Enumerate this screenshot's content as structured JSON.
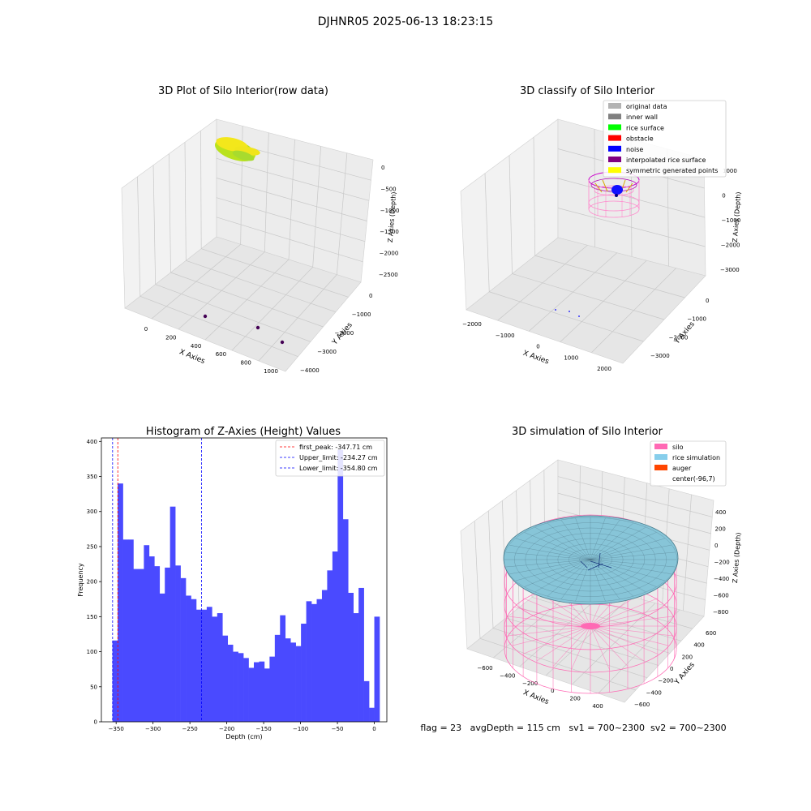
{
  "figure": {
    "suptitle": "DJHNR05 2025-06-13 18:23:15",
    "footer": "flag = 23   avgDepth = 115 cm   sv1 = 700~2300  sv2 = 700~2300"
  },
  "chart_data": [
    {
      "type": "scatter",
      "title": "3D Plot of Silo Interior(row data)",
      "xlabel": "X Axies",
      "ylabel": "Y Axies",
      "zlabel": "Z Axies (Depth)",
      "x_ticks": [
        "0",
        "200",
        "400",
        "600",
        "800",
        "1000"
      ],
      "y_ticks": [
        "0",
        "−1000",
        "−2000",
        "−3000",
        "−4000"
      ],
      "z_ticks": [
        "0",
        "−500",
        "−1000",
        "−1500",
        "−2000",
        "−2500"
      ],
      "colors": {
        "point_cloud": "#c8e61e",
        "point_cloud_yellow": "#f5e61e",
        "outliers": "#440154"
      }
    },
    {
      "type": "scatter",
      "title": "3D classify of Silo Interior",
      "xlabel": "X Axies",
      "ylabel": "Y Axies",
      "zlabel": "Z Axies (Depth)",
      "x_ticks": [
        "−2000",
        "−1000",
        "0",
        "1000",
        "2000"
      ],
      "y_ticks": [
        "0",
        "−1000",
        "−2000",
        "−3000"
      ],
      "z_ticks": [
        "1000",
        "0",
        "−1000",
        "−2000",
        "−3000"
      ],
      "legend_position": "top-right",
      "legend": [
        {
          "label": "original data",
          "color": "#b3b3b3"
        },
        {
          "label": "inner wall",
          "color": "#808080"
        },
        {
          "label": "rice surface",
          "color": "#00ff00"
        },
        {
          "label": "obstacle",
          "color": "#ff0000"
        },
        {
          "label": "noise",
          "color": "#0000ff"
        },
        {
          "label": "interpolated rice surface",
          "color": "#800080"
        },
        {
          "label": "symmetric generated points",
          "color": "#ffff00"
        }
      ]
    },
    {
      "type": "bar",
      "title": "Histogram of Z-Axies (Height) Values",
      "xlabel": "Depth (cm)",
      "ylabel": "Frequency",
      "xlim": [
        -370,
        17
      ],
      "ylim": [
        0,
        405
      ],
      "x_ticks": [
        -350,
        -300,
        -250,
        -200,
        -150,
        -100,
        -50,
        0
      ],
      "y_ticks": [
        0,
        50,
        100,
        150,
        200,
        250,
        300,
        350,
        400
      ],
      "bin_start": -355,
      "bin_width": 7.1,
      "values": [
        116,
        340,
        260,
        260,
        218,
        218,
        252,
        236,
        222,
        183,
        220,
        307,
        223,
        205,
        180,
        175,
        160,
        160,
        164,
        150,
        155,
        123,
        110,
        100,
        98,
        91,
        77,
        85,
        86,
        76,
        93,
        124,
        152,
        119,
        113,
        108,
        140,
        172,
        168,
        175,
        188,
        216,
        243,
        388,
        289,
        184,
        155,
        191,
        58,
        20,
        150
      ],
      "bar_color": "#4a4aff",
      "legend_position": "top-right",
      "lines": [
        {
          "label": "first_peak: -347.71 cm",
          "x": -347.71,
          "color": "#ff0000"
        },
        {
          "label": "Upper_limit: -234.27 cm",
          "x": -234.27,
          "color": "#0000ff"
        },
        {
          "label": "Lower_limit: -354.80 cm",
          "x": -354.8,
          "color": "#0000ff"
        }
      ]
    },
    {
      "type": "area",
      "title": "3D simulation of Silo Interior",
      "xlabel": "X Axies",
      "ylabel": "Y Axies",
      "zlabel": "Z Axies (Depth)",
      "x_ticks": [
        "−600",
        "−400",
        "−200",
        "0",
        "200",
        "400"
      ],
      "y_ticks": [
        "600",
        "400",
        "200",
        "0",
        "−200",
        "−400",
        "−600"
      ],
      "z_ticks": [
        "400",
        "200",
        "0",
        "−200",
        "−400",
        "−600",
        "−800"
      ],
      "legend_position": "top-right",
      "legend": [
        {
          "label": "silo",
          "color": "#ff69b4"
        },
        {
          "label": "rice simulation",
          "color": "#87ceeb"
        },
        {
          "label": "auger",
          "color": "#ff4500"
        },
        {
          "label": "center(-96,7)",
          "color": ""
        }
      ]
    }
  ]
}
